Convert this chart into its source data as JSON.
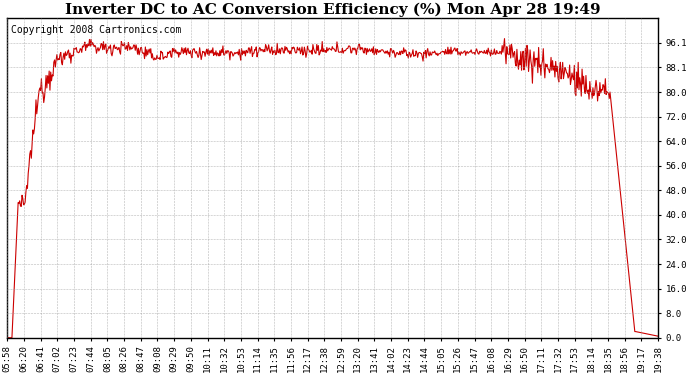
{
  "title": "Inverter DC to AC Conversion Efficiency (%) Mon Apr 28 19:49",
  "copyright": "Copyright 2008 Cartronics.com",
  "line_color": "#cc0000",
  "bg_color": "#ffffff",
  "plot_bg_color": "#ffffff",
  "grid_color": "#999999",
  "ylim": [
    0.0,
    104.0
  ],
  "yticks": [
    0.0,
    8.0,
    16.0,
    24.0,
    32.0,
    40.0,
    48.0,
    56.0,
    64.0,
    72.0,
    80.0,
    88.1,
    96.1
  ],
  "xtick_labels": [
    "05:58",
    "06:20",
    "06:41",
    "07:02",
    "07:23",
    "07:44",
    "08:05",
    "08:26",
    "08:47",
    "09:08",
    "09:29",
    "09:50",
    "10:11",
    "10:32",
    "10:53",
    "11:14",
    "11:35",
    "11:56",
    "12:17",
    "12:38",
    "12:59",
    "13:20",
    "13:41",
    "14:02",
    "14:23",
    "14:44",
    "15:05",
    "15:26",
    "15:47",
    "16:08",
    "16:29",
    "16:50",
    "17:11",
    "17:32",
    "17:53",
    "18:14",
    "18:35",
    "18:56",
    "19:17",
    "19:38"
  ],
  "title_fontsize": 11,
  "copyright_fontsize": 7,
  "tick_fontsize": 6.5,
  "line_width": 0.8,
  "figsize": [
    6.9,
    3.75
  ],
  "dpi": 100
}
